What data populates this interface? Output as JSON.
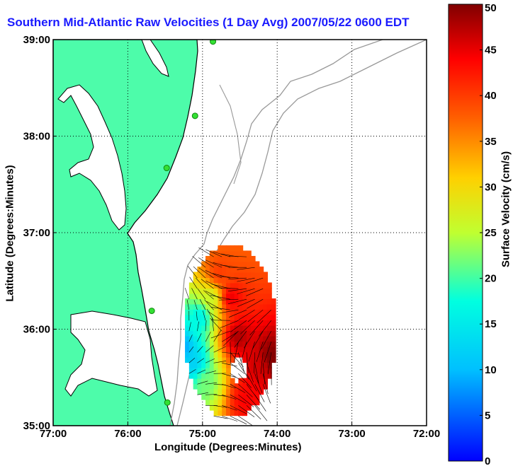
{
  "chart_data": {
    "type": "heatmap",
    "title": "Southern Mid-Atlantic Raw Velocities (1 Day Avg) 2007/05/22 0600 EDT",
    "xlabel": "Longitude (Degrees:Minutes)",
    "ylabel": "Latitude (Degrees:Minutes)",
    "xlim": [
      -77,
      -72
    ],
    "ylim": [
      35,
      39
    ],
    "x_ticks": [
      {
        "value": -77,
        "label": "77:00"
      },
      {
        "value": -76,
        "label": "76:00"
      },
      {
        "value": -75,
        "label": "75:00"
      },
      {
        "value": -74,
        "label": "74:00"
      },
      {
        "value": -73,
        "label": "73:00"
      },
      {
        "value": -72,
        "label": "72:00"
      }
    ],
    "y_ticks": [
      {
        "value": 39,
        "label": "39:00"
      },
      {
        "value": 38,
        "label": "38:00"
      },
      {
        "value": 37,
        "label": "37:00"
      },
      {
        "value": 36,
        "label": "36:00"
      },
      {
        "value": 35,
        "label": "35:00"
      }
    ],
    "grid": true,
    "colorbar": {
      "label": "Surface Velocity (cm/s)",
      "range": [
        0,
        50
      ],
      "ticks": [
        0,
        5,
        10,
        15,
        20,
        25,
        30,
        35,
        40,
        45,
        50
      ],
      "colormap": "jet"
    },
    "stations": [
      {
        "lon": -74.86,
        "lat": 38.98
      },
      {
        "lon": -75.1,
        "lat": 38.21
      },
      {
        "lon": -75.48,
        "lat": 37.67
      },
      {
        "lon": -75.68,
        "lat": 36.19
      },
      {
        "lon": -75.47,
        "lat": 35.24
      }
    ],
    "velocity_regions": [
      {
        "lon": -75.3,
        "lat": 35.78,
        "speed": 8
      },
      {
        "lon": -75.15,
        "lat": 35.62,
        "speed": 12
      },
      {
        "lon": -75.05,
        "lat": 36.1,
        "speed": 16
      },
      {
        "lon": -74.98,
        "lat": 35.42,
        "speed": 22
      },
      {
        "lon": -74.9,
        "lat": 36.3,
        "speed": 26
      },
      {
        "lon": -74.8,
        "lat": 36.55,
        "speed": 40
      },
      {
        "lon": -74.65,
        "lat": 36.3,
        "speed": 45
      },
      {
        "lon": -74.55,
        "lat": 35.9,
        "speed": 48
      },
      {
        "lon": -74.3,
        "lat": 35.6,
        "speed": 46
      },
      {
        "lon": -74.45,
        "lat": 35.25,
        "speed": 44
      },
      {
        "lon": -74.1,
        "lat": 35.7,
        "speed": 50
      }
    ],
    "colors": {
      "land": "#4dfcaa",
      "coast": "#000000",
      "bathymetry": "#999999",
      "station": "#33e033"
    }
  }
}
